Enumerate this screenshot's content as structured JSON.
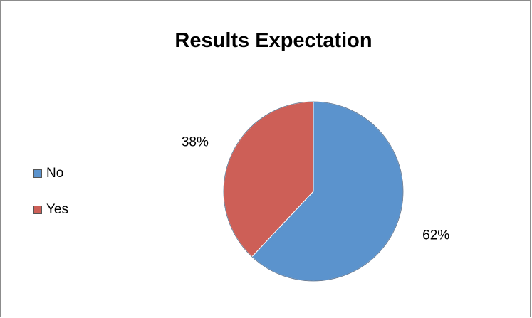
{
  "chart_data": {
    "type": "pie",
    "title": "Results Expectation",
    "categories": [
      "No",
      "Yes"
    ],
    "values": [
      62,
      38
    ],
    "value_labels": [
      "62%",
      "38%"
    ],
    "colors": [
      "#5b93cd",
      "#cd5f57"
    ],
    "legend_placement": "left"
  }
}
